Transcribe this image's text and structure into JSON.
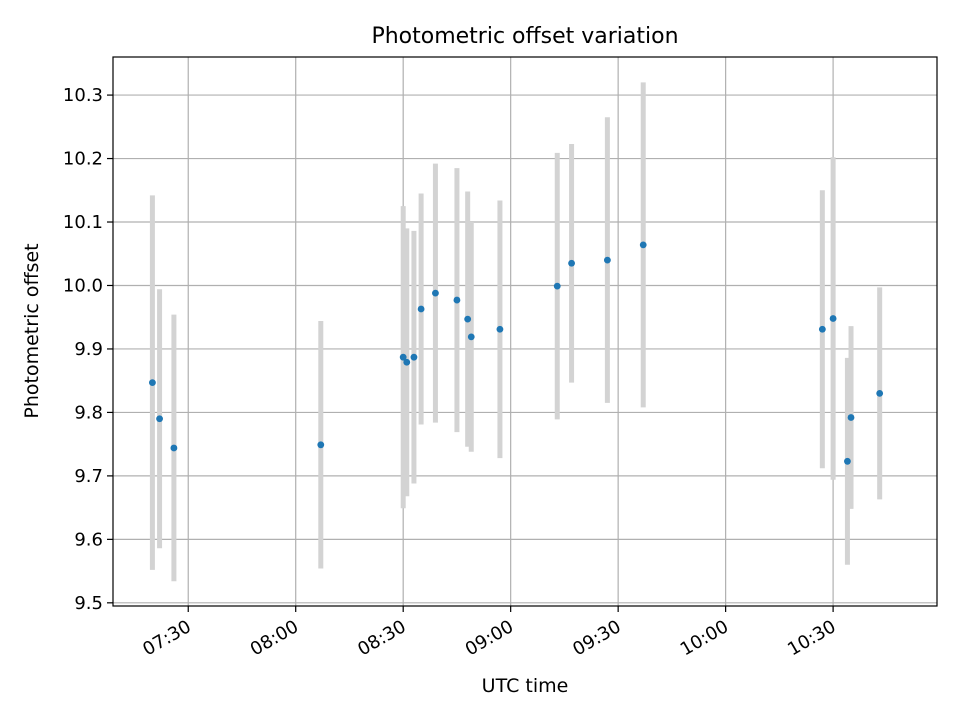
{
  "chart_data": {
    "type": "scatter",
    "title": "Photometric offset variation",
    "xlabel": "UTC time",
    "ylabel": "Photometric offset",
    "x_ticks": [
      "07:30",
      "08:00",
      "08:30",
      "09:00",
      "09:30",
      "10:00",
      "10:30"
    ],
    "y_ticks": [
      "9.5",
      "9.6",
      "9.7",
      "9.8",
      "9.9",
      "10.0",
      "10.1",
      "10.2",
      "10.3"
    ],
    "xlim": [
      "07:09",
      "10:59"
    ],
    "ylim": [
      9.495,
      10.36
    ],
    "grid": true,
    "legend": false,
    "point_color": "#1f77b4",
    "errorbar_color": "#d3d3d3",
    "points": [
      {
        "x": "07:20",
        "y": 9.847,
        "err": 0.295
      },
      {
        "x": "07:22",
        "y": 9.79,
        "err": 0.204
      },
      {
        "x": "07:26",
        "y": 9.744,
        "err": 0.21
      },
      {
        "x": "08:07",
        "y": 9.749,
        "err": 0.195
      },
      {
        "x": "08:30",
        "y": 9.887,
        "err": 0.238
      },
      {
        "x": "08:31",
        "y": 9.879,
        "err": 0.211
      },
      {
        "x": "08:33",
        "y": 9.887,
        "err": 0.199
      },
      {
        "x": "08:35",
        "y": 9.963,
        "err": 0.182
      },
      {
        "x": "08:39",
        "y": 9.988,
        "err": 0.204
      },
      {
        "x": "08:45",
        "y": 9.977,
        "err": 0.208
      },
      {
        "x": "08:48",
        "y": 9.947,
        "err": 0.201
      },
      {
        "x": "08:49",
        "y": 9.919,
        "err": 0.181
      },
      {
        "x": "08:57",
        "y": 9.931,
        "err": 0.203
      },
      {
        "x": "09:13",
        "y": 9.999,
        "err": 0.21
      },
      {
        "x": "09:17",
        "y": 10.035,
        "err": 0.188
      },
      {
        "x": "09:27",
        "y": 10.04,
        "err": 0.225
      },
      {
        "x": "09:37",
        "y": 10.064,
        "err": 0.256
      },
      {
        "x": "10:27",
        "y": 9.931,
        "err": 0.219
      },
      {
        "x": "10:30",
        "y": 9.948,
        "err": 0.254
      },
      {
        "x": "10:34",
        "y": 9.723,
        "err": 0.163
      },
      {
        "x": "10:35",
        "y": 9.792,
        "err": 0.144
      },
      {
        "x": "10:43",
        "y": 9.83,
        "err": 0.167
      }
    ]
  }
}
